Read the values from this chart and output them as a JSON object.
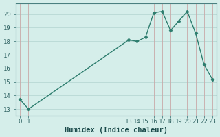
{
  "x": [
    0,
    1,
    13,
    14,
    15,
    16,
    17,
    18,
    19,
    20,
    21,
    22,
    23
  ],
  "y": [
    13.7,
    13.0,
    18.1,
    18.0,
    18.3,
    20.1,
    20.2,
    18.8,
    19.5,
    20.2,
    18.6,
    16.3,
    15.2
  ],
  "line_color": "#2d7d6e",
  "marker": "D",
  "marker_size": 2.5,
  "bg_color": "#d5eeea",
  "grid_color_v": "#c8a8a8",
  "grid_color_h": "#b8d8d4",
  "xlabel": "Humidex (Indice chaleur)",
  "ylim": [
    12.5,
    20.8
  ],
  "yticks": [
    13,
    14,
    15,
    16,
    17,
    18,
    19,
    20
  ],
  "xlim": [
    -0.5,
    23.5
  ],
  "xtick_positions": [
    0,
    1,
    13,
    14,
    15,
    16,
    17,
    18,
    19,
    20,
    21,
    22,
    23
  ],
  "xtick_labels": [
    "0",
    "1",
    "13",
    "14",
    "15",
    "16",
    "17",
    "18",
    "19",
    "20",
    "21",
    "22",
    "23"
  ],
  "xlabel_fontsize": 7.5,
  "tick_fontsize": 6.5,
  "line_width": 1.0
}
